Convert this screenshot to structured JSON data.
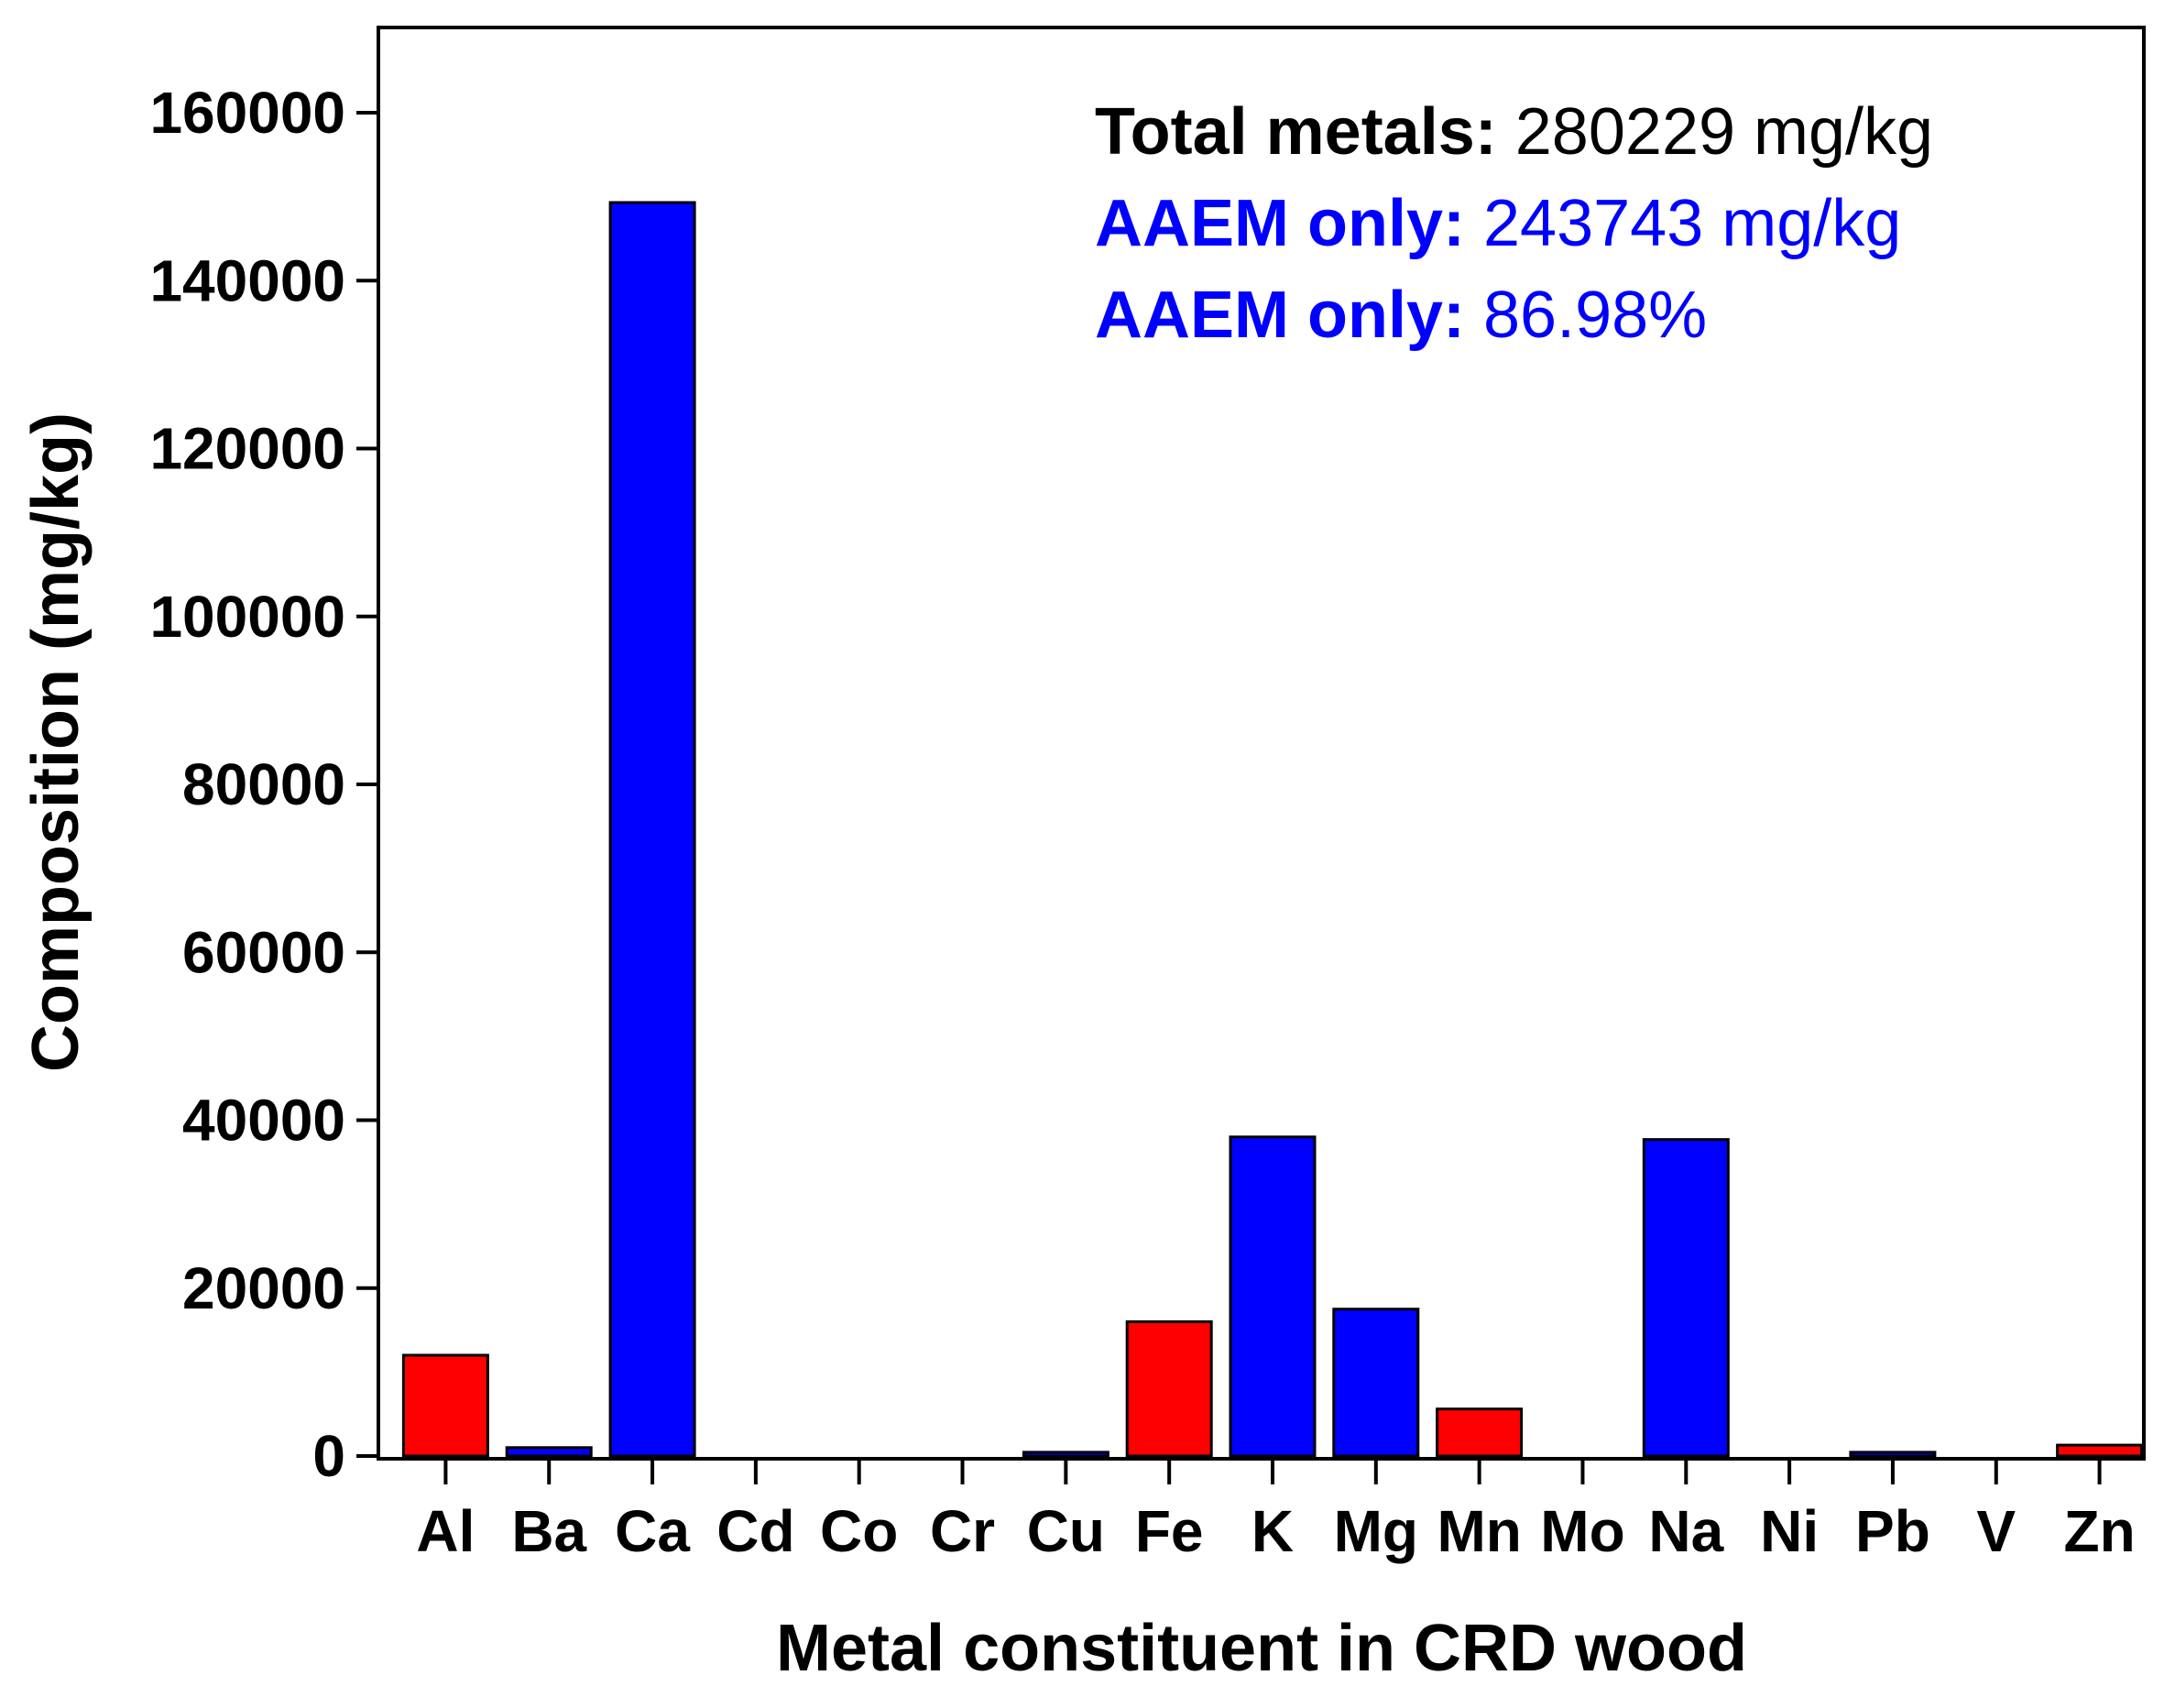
{
  "chart_data": {
    "type": "bar",
    "categories": [
      "Al",
      "Ba",
      "Ca",
      "Cd",
      "Co",
      "Cr",
      "Cu",
      "Fe",
      "K",
      "Mg",
      "Mn",
      "Mo",
      "Na",
      "Ni",
      "Pb",
      "V",
      "Zn"
    ],
    "values": [
      12000,
      1000,
      149300,
      0,
      0,
      0,
      450,
      16000,
      38000,
      17500,
      5600,
      0,
      37700,
      0,
      450,
      0,
      1300
    ],
    "bar_colors": [
      "#ff0000",
      "#0000ff",
      "#0000ff",
      "#0000ff",
      "#0000ff",
      "#0000ff",
      "#0000ff",
      "#ff0000",
      "#0000ff",
      "#0000ff",
      "#ff0000",
      "#0000ff",
      "#0000ff",
      "#0000ff",
      "#0000ff",
      "#0000ff",
      "#ff0000"
    ],
    "xlabel": "Metal constituent in CRD wood",
    "ylabel": "Composition (mg/kg)",
    "ylim": [
      0,
      170000
    ],
    "yticks": [
      0,
      20000,
      40000,
      60000,
      80000,
      100000,
      120000,
      140000,
      160000
    ],
    "ytick_labels": [
      "0",
      "20000",
      "40000",
      "60000",
      "80000",
      "100000",
      "120000",
      "140000",
      "160000"
    ],
    "grid": false,
    "annotations": [
      {
        "label": "Total metals:",
        "value": "280229 mg/kg",
        "color": "#000000"
      },
      {
        "label": "AAEM only:",
        "value": "243743 mg/kg",
        "color": "#0000ff"
      },
      {
        "label": "AAEM only:",
        "value": "86.98%",
        "color": "#0000ff"
      }
    ]
  }
}
